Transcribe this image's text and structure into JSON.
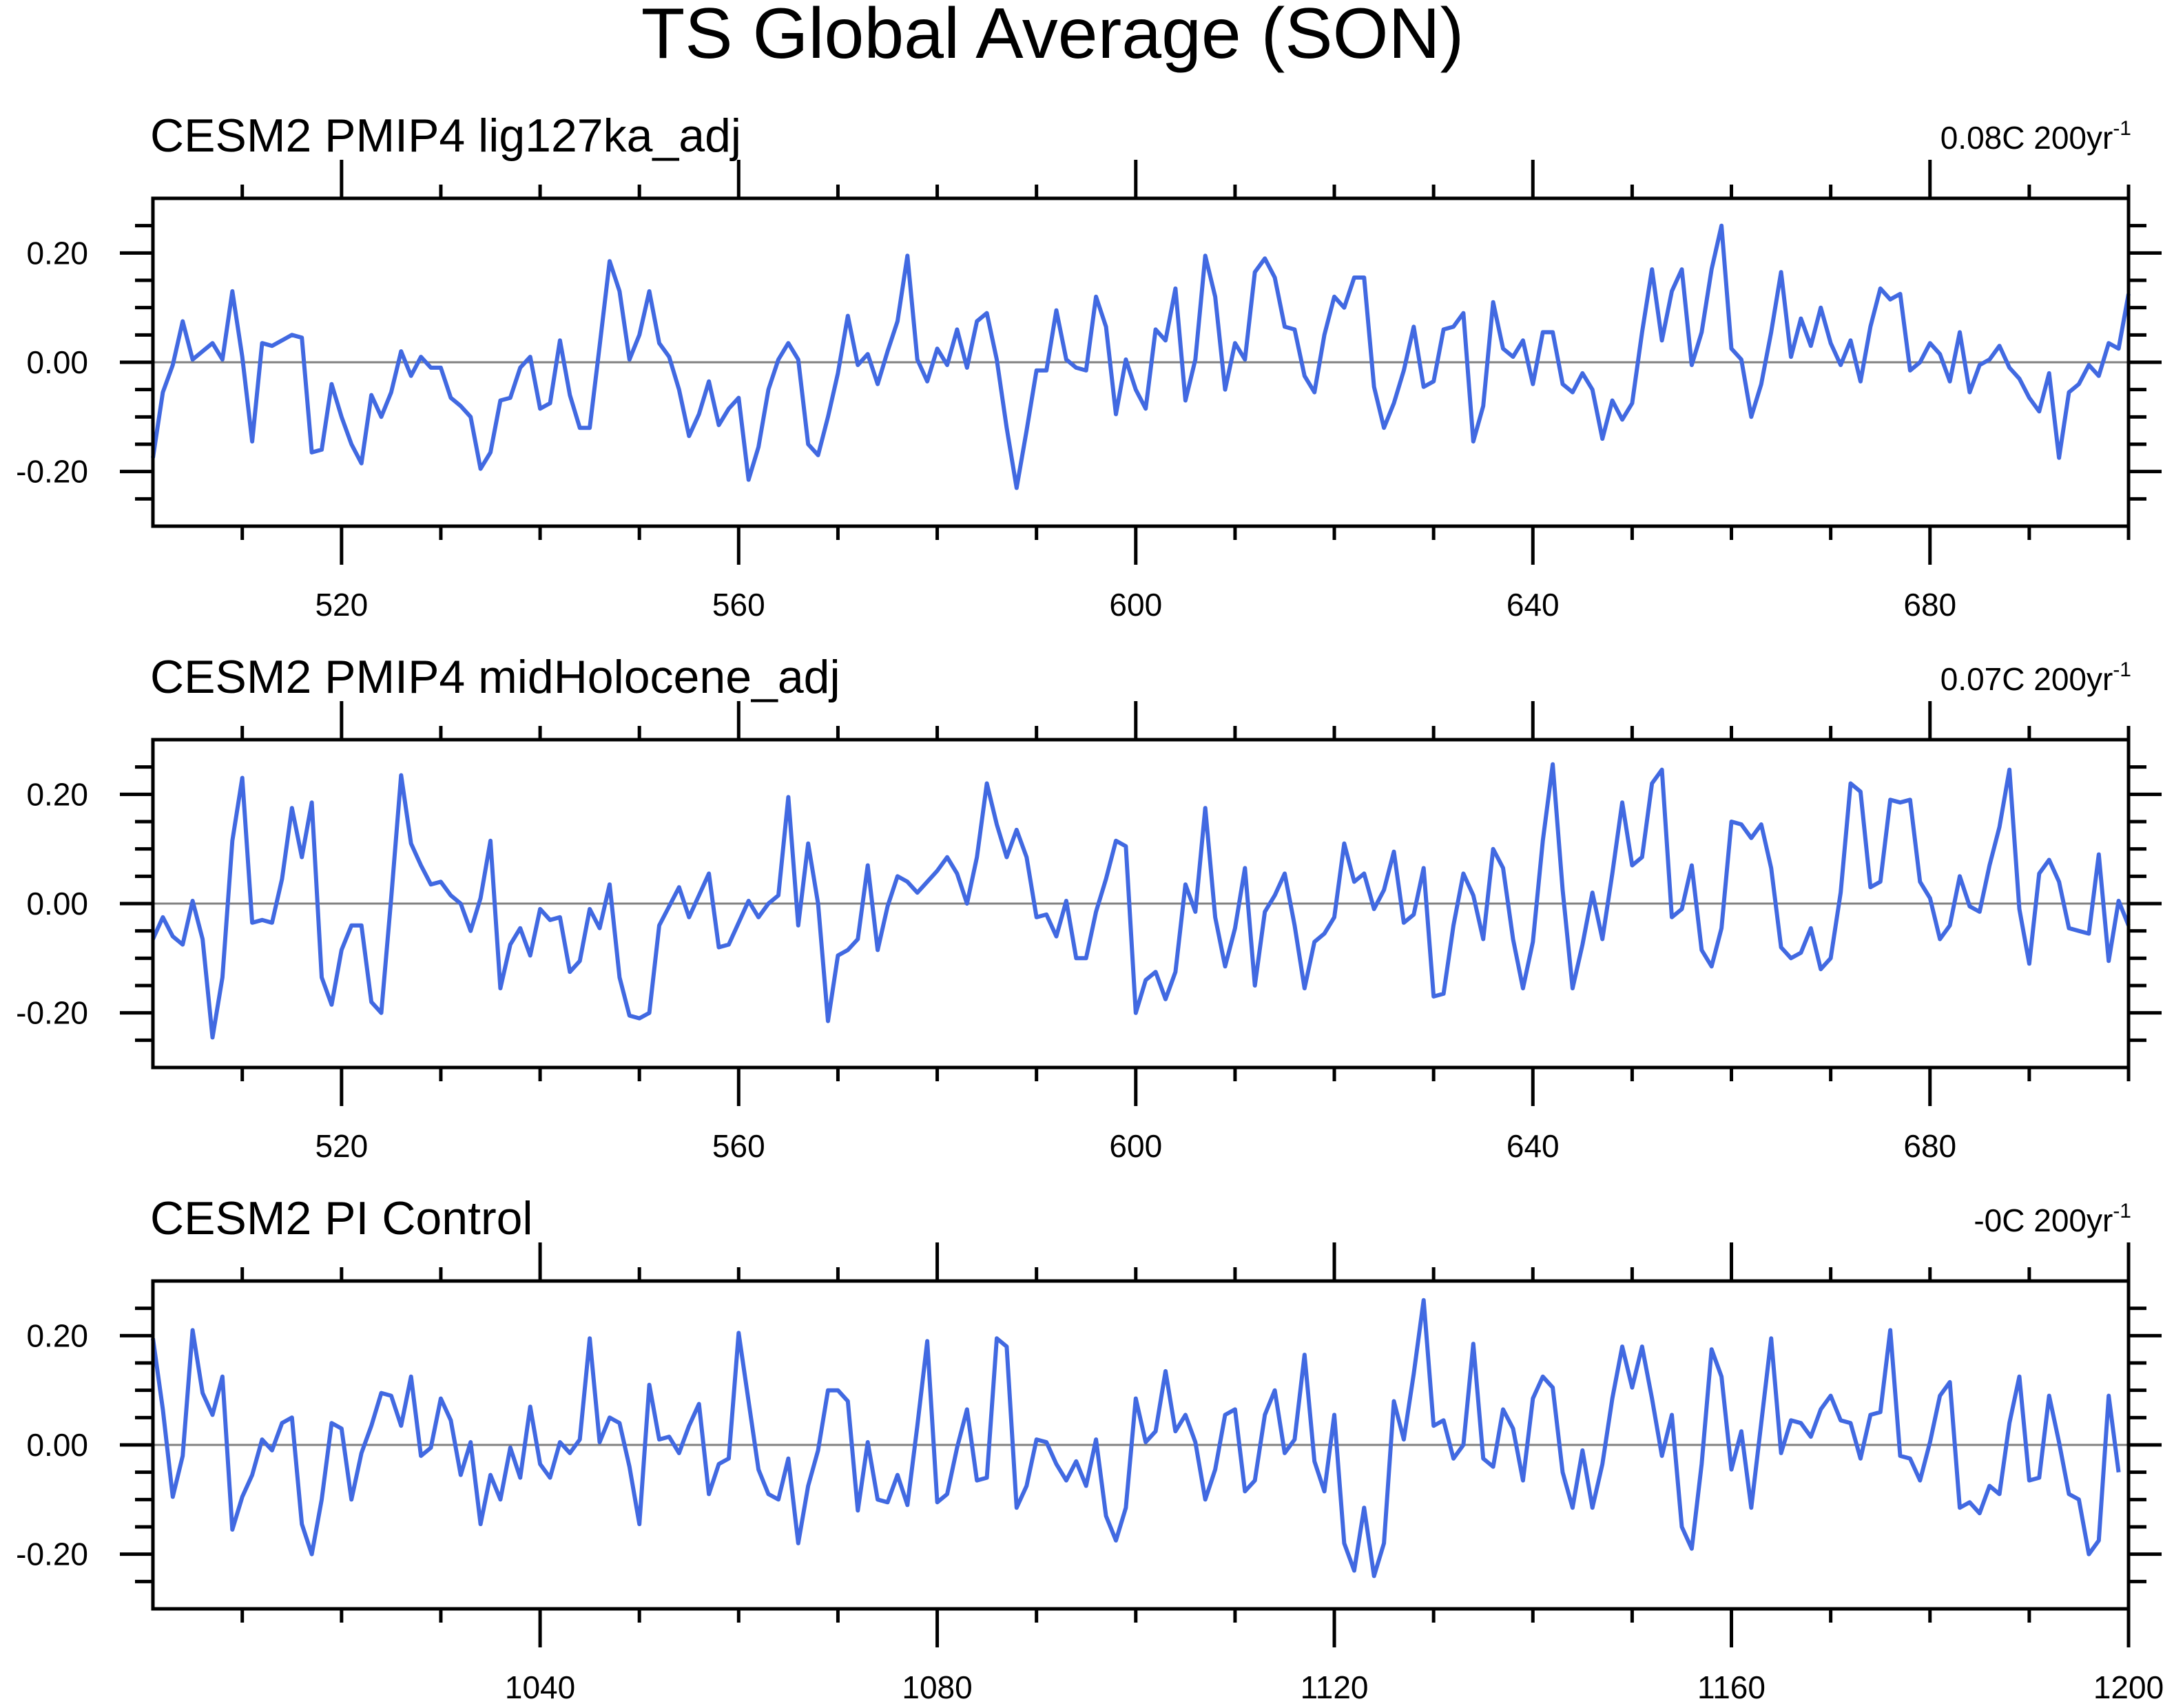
{
  "title": "TS Global Average (SON)",
  "colors": {
    "series": "#4169e1",
    "zero_line": "#808080",
    "frame": "#000000"
  },
  "chart_data": [
    {
      "type": "line",
      "title": "CESM2 PMIP4 lig127ka_adj",
      "trend_label": "0.08C 200yr",
      "trend_exponent": "-1",
      "xlim": [
        501,
        700
      ],
      "ylim": [
        -0.3,
        0.3
      ],
      "x_ticks": [
        520,
        560,
        600,
        640,
        680
      ],
      "x_tick_labels": [
        "520",
        "560",
        "600",
        "640",
        "680"
      ],
      "y_ticks": [
        -0.2,
        0.0,
        0.2
      ],
      "y_tick_labels": [
        "-0.20",
        "0.00",
        "0.20"
      ],
      "x_start": 501,
      "values": [
        -0.175,
        -0.055,
        -0.005,
        0.075,
        0.005,
        0.02,
        0.035,
        0.005,
        0.13,
        0.01,
        -0.145,
        0.035,
        0.03,
        0.04,
        0.05,
        0.045,
        -0.165,
        -0.16,
        -0.04,
        -0.1,
        -0.15,
        -0.185,
        -0.06,
        -0.1,
        -0.055,
        0.02,
        -0.025,
        0.01,
        -0.01,
        -0.01,
        -0.065,
        -0.08,
        -0.1,
        -0.195,
        -0.165,
        -0.07,
        -0.065,
        -0.01,
        0.01,
        -0.085,
        -0.075,
        0.04,
        -0.06,
        -0.12,
        -0.12,
        0.03,
        0.185,
        0.13,
        0.005,
        0.05,
        0.13,
        0.035,
        0.01,
        -0.05,
        -0.135,
        -0.095,
        -0.035,
        -0.115,
        -0.085,
        -0.065,
        -0.215,
        -0.155,
        -0.05,
        0.005,
        0.035,
        0.005,
        -0.15,
        -0.17,
        -0.1,
        -0.02,
        0.085,
        -0.005,
        0.015,
        -0.04,
        0.02,
        0.075,
        0.195,
        0.005,
        -0.035,
        0.025,
        -0.005,
        0.06,
        -0.01,
        0.075,
        0.09,
        0.005,
        -0.12,
        -0.23,
        -0.125,
        -0.015,
        -0.015,
        0.095,
        0.005,
        -0.01,
        -0.015,
        0.12,
        0.065,
        -0.095,
        0.005,
        -0.05,
        -0.085,
        0.06,
        0.04,
        0.135,
        -0.07,
        0.005,
        0.195,
        0.12,
        -0.05,
        0.035,
        0.005,
        0.165,
        0.19,
        0.155,
        0.065,
        0.06,
        -0.025,
        -0.055,
        0.05,
        0.12,
        0.1,
        0.155,
        0.155,
        -0.045,
        -0.12,
        -0.075,
        -0.015,
        0.065,
        -0.045,
        -0.035,
        0.06,
        0.065,
        0.09,
        -0.145,
        -0.08,
        0.11,
        0.025,
        0.01,
        0.04,
        -0.04,
        0.055,
        0.055,
        -0.04,
        -0.055,
        -0.02,
        -0.05,
        -0.14,
        -0.07,
        -0.105,
        -0.075,
        0.055,
        0.17,
        0.04,
        0.13,
        0.17,
        -0.005,
        0.055,
        0.17,
        0.25,
        0.025,
        0.005,
        -0.1,
        -0.04,
        0.055,
        0.165,
        0.01,
        0.08,
        0.03,
        0.1,
        0.035,
        -0.005,
        0.04,
        -0.035,
        0.065,
        0.135,
        0.115,
        0.125,
        -0.015,
        0.0,
        0.035,
        0.015,
        -0.035,
        0.055,
        -0.055,
        -0.005,
        0.005,
        0.03,
        -0.01,
        -0.03,
        -0.065,
        -0.09,
        -0.02,
        -0.175,
        -0.055,
        -0.04,
        -0.005,
        -0.025,
        0.035,
        0.025,
        0.125
      ]
    },
    {
      "type": "line",
      "title": "CESM2 PMIP4 midHolocene_adj",
      "trend_label": "0.07C 200yr",
      "trend_exponent": "-1",
      "xlim": [
        501,
        700
      ],
      "ylim": [
        -0.3,
        0.3
      ],
      "x_ticks": [
        520,
        560,
        600,
        640,
        680
      ],
      "x_tick_labels": [
        "520",
        "560",
        "600",
        "640",
        "680"
      ],
      "y_ticks": [
        -0.2,
        0.0,
        0.2
      ],
      "y_tick_labels": [
        "-0.20",
        "0.00",
        "0.20"
      ],
      "x_start": 501,
      "values": [
        -0.065,
        -0.025,
        -0.06,
        -0.075,
        0.005,
        -0.065,
        -0.245,
        -0.135,
        0.115,
        0.23,
        -0.035,
        -0.03,
        -0.035,
        0.045,
        0.175,
        0.085,
        0.185,
        -0.135,
        -0.185,
        -0.085,
        -0.04,
        -0.04,
        -0.18,
        -0.2,
        0.01,
        0.235,
        0.11,
        0.07,
        0.035,
        0.04,
        0.015,
        0.0,
        -0.05,
        0.01,
        0.115,
        -0.155,
        -0.075,
        -0.045,
        -0.095,
        -0.01,
        -0.03,
        -0.025,
        -0.125,
        -0.105,
        -0.01,
        -0.045,
        0.035,
        -0.135,
        -0.205,
        -0.21,
        -0.2,
        -0.04,
        -0.005,
        0.03,
        -0.025,
        0.015,
        0.055,
        -0.08,
        -0.075,
        -0.035,
        0.005,
        -0.025,
        0.0,
        0.015,
        0.195,
        -0.04,
        0.11,
        0.0,
        -0.215,
        -0.095,
        -0.085,
        -0.065,
        0.07,
        -0.085,
        -0.005,
        0.05,
        0.04,
        0.02,
        0.04,
        0.06,
        0.085,
        0.055,
        0.0,
        0.085,
        0.22,
        0.145,
        0.085,
        0.135,
        0.085,
        -0.025,
        -0.02,
        -0.06,
        0.005,
        -0.1,
        -0.1,
        -0.015,
        0.045,
        0.115,
        0.105,
        -0.2,
        -0.14,
        -0.125,
        -0.175,
        -0.125,
        0.035,
        -0.015,
        0.175,
        -0.025,
        -0.115,
        -0.045,
        0.065,
        -0.15,
        -0.015,
        0.015,
        0.055,
        -0.04,
        -0.155,
        -0.07,
        -0.055,
        -0.025,
        0.11,
        0.04,
        0.055,
        -0.01,
        0.025,
        0.095,
        -0.035,
        -0.02,
        0.065,
        -0.17,
        -0.165,
        -0.04,
        0.055,
        0.015,
        -0.065,
        0.1,
        0.065,
        -0.065,
        -0.155,
        -0.07,
        0.115,
        0.255,
        0.025,
        -0.155,
        -0.075,
        0.02,
        -0.065,
        0.055,
        0.185,
        0.07,
        0.085,
        0.22,
        0.245,
        -0.025,
        -0.01,
        0.07,
        -0.085,
        -0.115,
        -0.045,
        0.15,
        0.145,
        0.12,
        0.145,
        0.065,
        -0.08,
        -0.1,
        -0.09,
        -0.045,
        -0.12,
        -0.1,
        0.02,
        0.22,
        0.205,
        0.03,
        0.04,
        0.19,
        0.185,
        0.19,
        0.04,
        0.01,
        -0.065,
        -0.04,
        0.05,
        -0.005,
        -0.015,
        0.07,
        0.14,
        0.245,
        -0.01,
        -0.11,
        0.055,
        0.08,
        0.04,
        -0.045,
        -0.05,
        -0.055,
        0.09,
        -0.105,
        0.005,
        -0.04
      ]
    },
    {
      "type": "line",
      "title": "CESM2 PI Control",
      "trend_label": "-0C 200yr",
      "trend_exponent": "-1",
      "xlim": [
        1001,
        1200
      ],
      "ylim": [
        -0.3,
        0.3
      ],
      "x_ticks": [
        1040,
        1080,
        1120,
        1160,
        1200
      ],
      "x_tick_labels": [
        "1040",
        "1080",
        "1120",
        "1160",
        "1200"
      ],
      "y_ticks": [
        -0.2,
        0.0,
        0.2
      ],
      "y_tick_labels": [
        "-0.20",
        "0.00",
        "0.20"
      ],
      "x_start": 1001,
      "values": [
        0.195,
        0.065,
        -0.095,
        -0.02,
        0.21,
        0.095,
        0.055,
        0.125,
        -0.155,
        -0.095,
        -0.055,
        0.01,
        -0.01,
        0.04,
        0.05,
        -0.145,
        -0.2,
        -0.1,
        0.04,
        0.03,
        -0.1,
        -0.015,
        0.035,
        0.095,
        0.09,
        0.035,
        0.125,
        -0.02,
        -0.005,
        0.085,
        0.045,
        -0.055,
        0.005,
        -0.145,
        -0.055,
        -0.1,
        -0.005,
        -0.06,
        0.07,
        -0.035,
        -0.06,
        0.005,
        -0.015,
        0.01,
        0.195,
        0.005,
        0.05,
        0.04,
        -0.04,
        -0.145,
        0.11,
        0.01,
        0.015,
        -0.015,
        0.035,
        0.075,
        -0.09,
        -0.035,
        -0.025,
        0.205,
        0.08,
        -0.045,
        -0.09,
        -0.1,
        -0.025,
        -0.18,
        -0.075,
        -0.01,
        0.1,
        0.1,
        0.08,
        -0.12,
        0.005,
        -0.1,
        -0.105,
        -0.055,
        -0.11,
        0.035,
        0.19,
        -0.105,
        -0.09,
        -0.005,
        0.065,
        -0.065,
        -0.06,
        0.195,
        0.18,
        -0.115,
        -0.075,
        0.01,
        0.005,
        -0.035,
        -0.065,
        -0.03,
        -0.075,
        0.01,
        -0.13,
        -0.175,
        -0.115,
        0.085,
        0.005,
        0.025,
        0.135,
        0.025,
        0.055,
        0.005,
        -0.1,
        -0.045,
        0.055,
        0.065,
        -0.085,
        -0.065,
        0.055,
        0.1,
        -0.015,
        0.01,
        0.165,
        -0.03,
        -0.085,
        0.055,
        -0.18,
        -0.23,
        -0.115,
        -0.24,
        -0.18,
        0.08,
        0.01,
        0.13,
        0.265,
        0.035,
        0.045,
        -0.025,
        0.0,
        0.185,
        -0.025,
        -0.04,
        0.065,
        0.03,
        -0.065,
        0.085,
        0.125,
        0.105,
        -0.05,
        -0.115,
        -0.01,
        -0.115,
        -0.035,
        0.085,
        0.18,
        0.105,
        0.18,
        0.085,
        -0.02,
        0.055,
        -0.15,
        -0.19,
        -0.035,
        0.175,
        0.125,
        -0.045,
        0.025,
        -0.115,
        0.04,
        0.195,
        -0.015,
        0.045,
        0.04,
        0.015,
        0.065,
        0.09,
        0.045,
        0.04,
        -0.025,
        0.055,
        0.06,
        0.21,
        -0.02,
        -0.025,
        -0.065,
        0.005,
        0.09,
        0.115,
        -0.115,
        -0.105,
        -0.125,
        -0.075,
        -0.09,
        0.04,
        0.125,
        -0.065,
        -0.06,
        0.09,
        0.005,
        -0.09,
        -0.1,
        -0.2,
        -0.175,
        0.09,
        -0.05
      ]
    }
  ]
}
